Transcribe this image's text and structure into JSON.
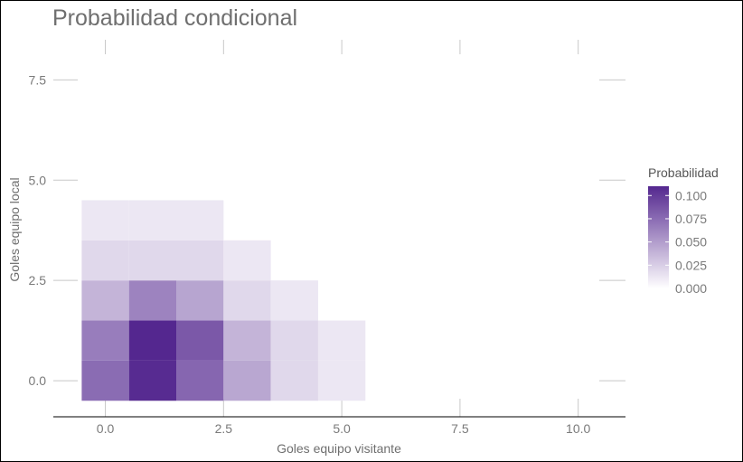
{
  "chart_data": {
    "type": "heatmap",
    "title": "Probabilidad condicional",
    "xlabel": "Goles equipo visitante",
    "ylabel": "Goles equipo local",
    "xlim": [
      -1.1,
      11.0
    ],
    "ylim": [
      -0.9,
      8.5
    ],
    "x_ticks": [
      0,
      2.5,
      5,
      7.5,
      10
    ],
    "x_tick_labels": [
      "0.0",
      "2.5",
      "5.0",
      "7.5",
      "10.0"
    ],
    "y_ticks": [
      0,
      2.5,
      5,
      7.5
    ],
    "y_tick_labels": [
      "0.0",
      "2.5",
      "5.0",
      "7.5"
    ],
    "grid": true,
    "legend_position": "right",
    "colors": {
      "low": "#ffffff",
      "high": "#54278f"
    },
    "legend": {
      "title": "Probabilidad",
      "max": 0.11,
      "ticks": [
        0,
        0.025,
        0.05,
        0.075,
        0.1
      ],
      "tick_labels": [
        "0.000",
        "0.025",
        "0.050",
        "0.075",
        "0.100"
      ]
    },
    "cells": [
      {
        "x": 0,
        "y": 0,
        "value": 0.075
      },
      {
        "x": 1,
        "y": 0,
        "value": 0.108
      },
      {
        "x": 2,
        "y": 0,
        "value": 0.078
      },
      {
        "x": 3,
        "y": 0,
        "value": 0.045
      },
      {
        "x": 4,
        "y": 0,
        "value": 0.02
      },
      {
        "x": 5,
        "y": 0,
        "value": 0.012
      },
      {
        "x": 0,
        "y": 1,
        "value": 0.066
      },
      {
        "x": 1,
        "y": 1,
        "value": 0.11
      },
      {
        "x": 2,
        "y": 1,
        "value": 0.085
      },
      {
        "x": 3,
        "y": 1,
        "value": 0.038
      },
      {
        "x": 4,
        "y": 1,
        "value": 0.02
      },
      {
        "x": 5,
        "y": 1,
        "value": 0.012
      },
      {
        "x": 0,
        "y": 2,
        "value": 0.038
      },
      {
        "x": 1,
        "y": 2,
        "value": 0.063
      },
      {
        "x": 2,
        "y": 2,
        "value": 0.046
      },
      {
        "x": 3,
        "y": 2,
        "value": 0.02
      },
      {
        "x": 4,
        "y": 2,
        "value": 0.012
      },
      {
        "x": 0,
        "y": 3,
        "value": 0.02
      },
      {
        "x": 1,
        "y": 3,
        "value": 0.02
      },
      {
        "x": 2,
        "y": 3,
        "value": 0.02
      },
      {
        "x": 3,
        "y": 3,
        "value": 0.012
      },
      {
        "x": 0,
        "y": 4,
        "value": 0.012
      },
      {
        "x": 1,
        "y": 4,
        "value": 0.012
      },
      {
        "x": 2,
        "y": 4,
        "value": 0.012
      }
    ]
  }
}
